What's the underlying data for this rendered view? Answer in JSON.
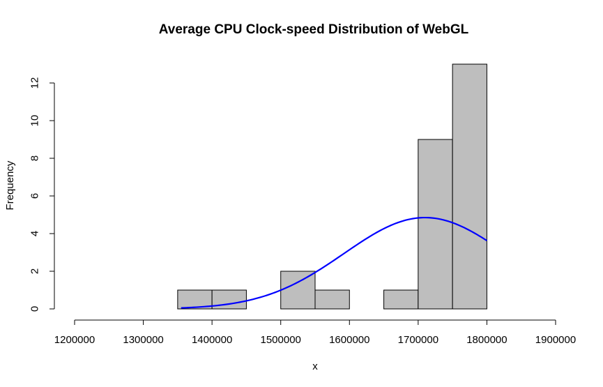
{
  "chart_data": {
    "type": "bar",
    "subtype": "histogram",
    "title": "Average CPU Clock-speed Distribution of WebGL",
    "xlabel": "x",
    "ylabel": "Frequency",
    "xlim": [
      1200000,
      1900000
    ],
    "ylim": [
      0,
      13
    ],
    "x_ticks": [
      1200000,
      1300000,
      1400000,
      1500000,
      1600000,
      1700000,
      1800000,
      1900000
    ],
    "x_tick_labels": [
      "1200000",
      "1300000",
      "1400000",
      "1500000",
      "1600000",
      "1700000",
      "1800000",
      "1900000"
    ],
    "y_ticks": [
      0,
      2,
      4,
      6,
      8,
      10,
      12
    ],
    "y_tick_labels": [
      "0",
      "2",
      "4",
      "6",
      "8",
      "10",
      "12"
    ],
    "bins": [
      {
        "start": 1350000,
        "end": 1400000,
        "count": 1
      },
      {
        "start": 1400000,
        "end": 1450000,
        "count": 1
      },
      {
        "start": 1450000,
        "end": 1500000,
        "count": 0
      },
      {
        "start": 1500000,
        "end": 1550000,
        "count": 2
      },
      {
        "start": 1550000,
        "end": 1600000,
        "count": 1
      },
      {
        "start": 1600000,
        "end": 1650000,
        "count": 0
      },
      {
        "start": 1650000,
        "end": 1700000,
        "count": 1
      },
      {
        "start": 1700000,
        "end": 1750000,
        "count": 9
      },
      {
        "start": 1750000,
        "end": 1800000,
        "count": 13
      }
    ],
    "bar_color": "#bebebe",
    "bar_border_color": "#000000",
    "curve": {
      "type": "normal-density",
      "color": "#0000ff",
      "x_range": [
        1355000,
        1800000
      ],
      "mean": 1710000,
      "sd": 118000,
      "peak": 4.85
    },
    "grid": false,
    "legend": "none"
  }
}
